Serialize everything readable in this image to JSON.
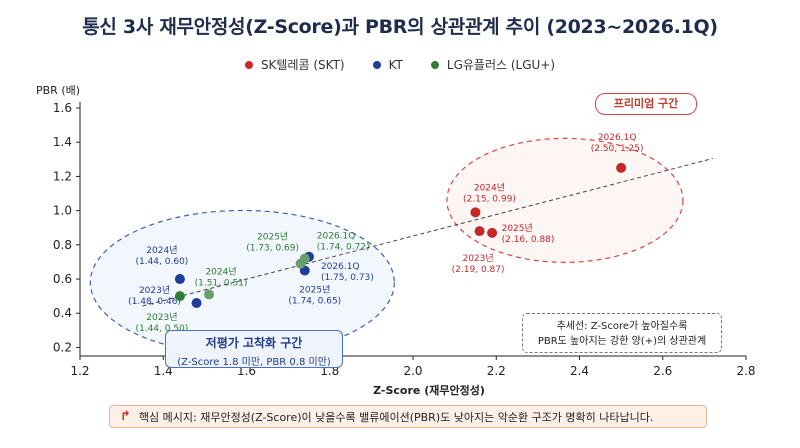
{
  "title": "통신 3사 재무안정성(Z-Score)과 PBR의 상관관계 추이 (2023~2026.1Q)",
  "legend": [
    {
      "label": "SK텔레콤 (SKT)",
      "color": "#c62828"
    },
    {
      "label": "KT",
      "color": "#1f3d99"
    },
    {
      "label": "LG유플러스 (LGU+)",
      "color": "#2e7d32"
    }
  ],
  "chart_data": {
    "type": "scatter",
    "xlabel": "Z-Score (재무안정성)",
    "ylabel": "PBR (배)",
    "xlim": [
      1.2,
      2.8
    ],
    "ylim": [
      0.15,
      1.6
    ],
    "xticks": [
      "1.2",
      "1.4",
      "1.6",
      "1.8",
      "2.0",
      "2.2",
      "2.4",
      "2.6",
      "2.8"
    ],
    "yticks": [
      "0.2",
      "0.4",
      "0.6",
      "0.8",
      "1.0",
      "1.2",
      "1.4",
      "1.6"
    ],
    "series": [
      {
        "name": "SK텔레콤 (SKT)",
        "color": "#c62828",
        "points": [
          {
            "x": 2.19,
            "y": 0.87,
            "year": "2023년",
            "coord": "(2.19, 0.87)"
          },
          {
            "x": 2.15,
            "y": 0.99,
            "year": "2024년",
            "coord": "(2.15, 0.99)"
          },
          {
            "x": 2.16,
            "y": 0.88,
            "year": "2025년",
            "coord": "(2.16, 0.88)"
          },
          {
            "x": 2.5,
            "y": 1.25,
            "year": "2026.1Q",
            "coord": "(2.50, 1.25)"
          }
        ]
      },
      {
        "name": "KT",
        "color": "#1f3d99",
        "points": [
          {
            "x": 1.48,
            "y": 0.46,
            "year": "2023년",
            "coord": "(1.48, 0.46)"
          },
          {
            "x": 1.44,
            "y": 0.6,
            "year": "2024년",
            "coord": "(1.44, 0.60)"
          },
          {
            "x": 1.74,
            "y": 0.65,
            "year": "2025년",
            "coord": "(1.74, 0.65)"
          },
          {
            "x": 1.75,
            "y": 0.73,
            "year": "2026.1Q",
            "coord": "(1.75, 0.73)"
          }
        ]
      },
      {
        "name": "LG유플러스 (LGU+)",
        "color": "#2e7d32",
        "points": [
          {
            "x": 1.44,
            "y": 0.5,
            "year": "2023년",
            "coord": "(1.44, 0.50)"
          },
          {
            "x": 1.51,
            "y": 0.51,
            "year": "2024년",
            "coord": "(1.51, 0.51)"
          },
          {
            "x": 1.73,
            "y": 0.69,
            "year": "2025년",
            "coord": "(1.73, 0.69)"
          },
          {
            "x": 1.74,
            "y": 0.72,
            "year": "2026.1Q",
            "coord": "(1.74, 0.72)"
          }
        ]
      }
    ]
  },
  "annotations": {
    "premium_zone": "프리미엄 구간",
    "low_zone_title": "저평가 고착화 구간",
    "low_zone_sub": "(Z-Score 1.8 미만, PBR 0.8 미만)",
    "trend_note_1": "추세선: Z-Score가 높아질수록",
    "trend_note_2": "PBR도 높아지는 강한 양(+)의 상관관계"
  },
  "footer": {
    "message": "핵심 메시지: 재무안정성(Z-Score)이 낮을수록 밸류에이션(PBR)도 낮아지는 악순환 구조가 명확히 나타납니다."
  }
}
